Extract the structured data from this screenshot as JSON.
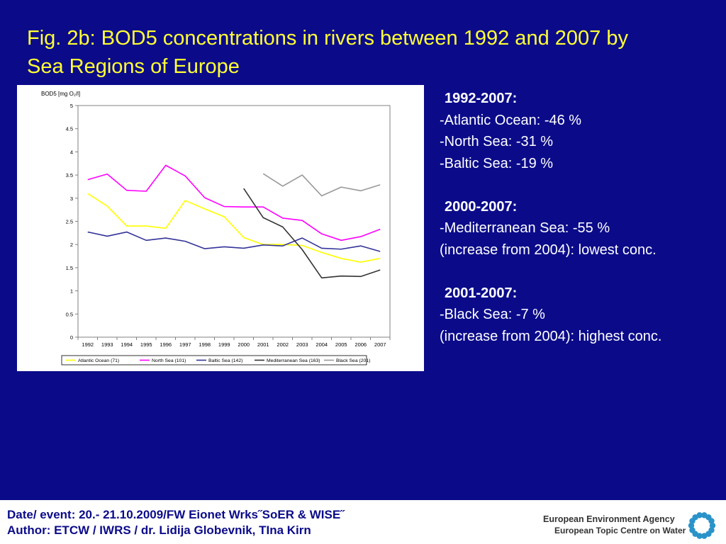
{
  "slide": {
    "title": "Fig. 2b: BOD5 concentrations in rivers between 1992 and 2007 by Sea Regions of Europe"
  },
  "notes": {
    "sections": [
      {
        "period": "1992-2007:",
        "lines": [
          "-Atlantic Ocean: -46 %",
          "-North Sea: -31 %",
          "-Baltic Sea: -19 %"
        ]
      },
      {
        "period": "2000-2007:",
        "lines": [
          "-Mediterranean Sea: -55 %",
          "(increase from 2004): lowest conc."
        ]
      },
      {
        "period": "2001-2007:",
        "lines": [
          "-Black Sea: -7 %",
          "(increase from 2004): highest conc."
        ]
      }
    ]
  },
  "footer": {
    "line1": "Date/ event: 20.- 21.10.2009/FW Eionet Wrks˝SoER & WISE˝",
    "line2": "Author: ETCW / IWRS / dr. Lidija Globevnik, TIna Kirn",
    "logo_name": "European Environment Agency",
    "logo_sub": "European Topic Centre on Water"
  },
  "colors": {
    "background": "#0b0b8a",
    "title": "#ffff33",
    "logo_mark": "#2a93c9"
  },
  "chart_data": {
    "type": "line",
    "ylabel": "BOD5 [mg O₂/l]",
    "ylim": [
      0,
      5
    ],
    "yticks": [
      "0",
      "0.5",
      "1",
      "1.5",
      "2",
      "2.5",
      "3",
      "3.5",
      "4",
      "4.5",
      "5"
    ],
    "categories": [
      "1992",
      "1993",
      "1994",
      "1995",
      "1996",
      "1997",
      "1998",
      "1999",
      "2000",
      "2001",
      "2002",
      "2003",
      "2004",
      "2005",
      "2006",
      "2007"
    ],
    "grid": false,
    "legend_position": "bottom",
    "series": [
      {
        "name": "Atlantic Ocean (71)",
        "color": "#ffff00",
        "values": [
          3.1,
          2.83,
          2.4,
          2.4,
          2.35,
          2.95,
          2.77,
          2.6,
          2.15,
          2.0,
          2.0,
          1.98,
          1.83,
          1.7,
          1.62,
          1.7
        ]
      },
      {
        "name": "North Sea (101)",
        "color": "#ff00ff",
        "values": [
          3.4,
          3.52,
          3.17,
          3.15,
          3.71,
          3.48,
          3.01,
          2.82,
          2.81,
          2.81,
          2.57,
          2.52,
          2.23,
          2.09,
          2.17,
          2.33
        ]
      },
      {
        "name": "Baltic Sea (142)",
        "color": "#333399",
        "values": [
          2.27,
          2.18,
          2.27,
          2.09,
          2.14,
          2.07,
          1.91,
          1.95,
          1.92,
          1.99,
          1.97,
          2.14,
          1.92,
          1.9,
          1.97,
          1.85
        ]
      },
      {
        "name": "Mediterranean Sea (163)",
        "color": "#333333",
        "values": [
          null,
          null,
          null,
          null,
          null,
          null,
          null,
          null,
          3.21,
          2.58,
          2.38,
          1.89,
          1.28,
          1.32,
          1.31,
          1.45
        ]
      },
      {
        "name": "Black Sea (201)",
        "color": "#999999",
        "values": [
          null,
          null,
          null,
          null,
          null,
          null,
          null,
          null,
          null,
          3.53,
          3.26,
          3.5,
          3.05,
          3.24,
          3.16,
          3.29
        ]
      }
    ]
  }
}
